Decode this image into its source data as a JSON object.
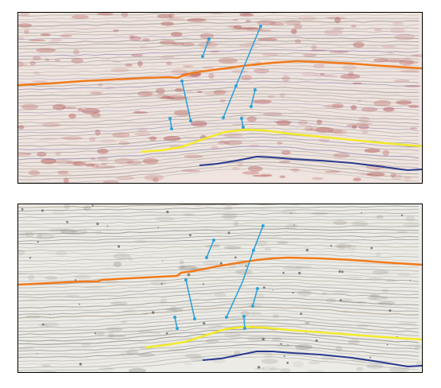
{
  "figure": {
    "panels": [
      {
        "id": "top",
        "style": "seismic-amplitude",
        "base_color": "#efe4df",
        "texture_colors": [
          "#b44a4a",
          "#c97a7a",
          "#7a7aa8",
          "#8f8f86"
        ],
        "horizons": [
          {
            "name": "orange",
            "color": "#f07a1a"
          },
          {
            "name": "yellow",
            "color": "#f2ea2a"
          },
          {
            "name": "blue",
            "color": "#2b3a8f"
          }
        ],
        "fault_color": "#2fa3d8"
      },
      {
        "id": "bottom",
        "style": "seismic-attribute",
        "base_color": "#ecebe6",
        "texture_colors": [
          "#8a8a86",
          "#b1aea6",
          "#2a2a2a"
        ],
        "horizons": [
          {
            "name": "orange",
            "color": "#f07a1a"
          },
          {
            "name": "yellow",
            "color": "#f2ea2a"
          },
          {
            "name": "blue",
            "color": "#2b3a8f"
          }
        ],
        "fault_color": "#2fa3d8"
      }
    ]
  }
}
